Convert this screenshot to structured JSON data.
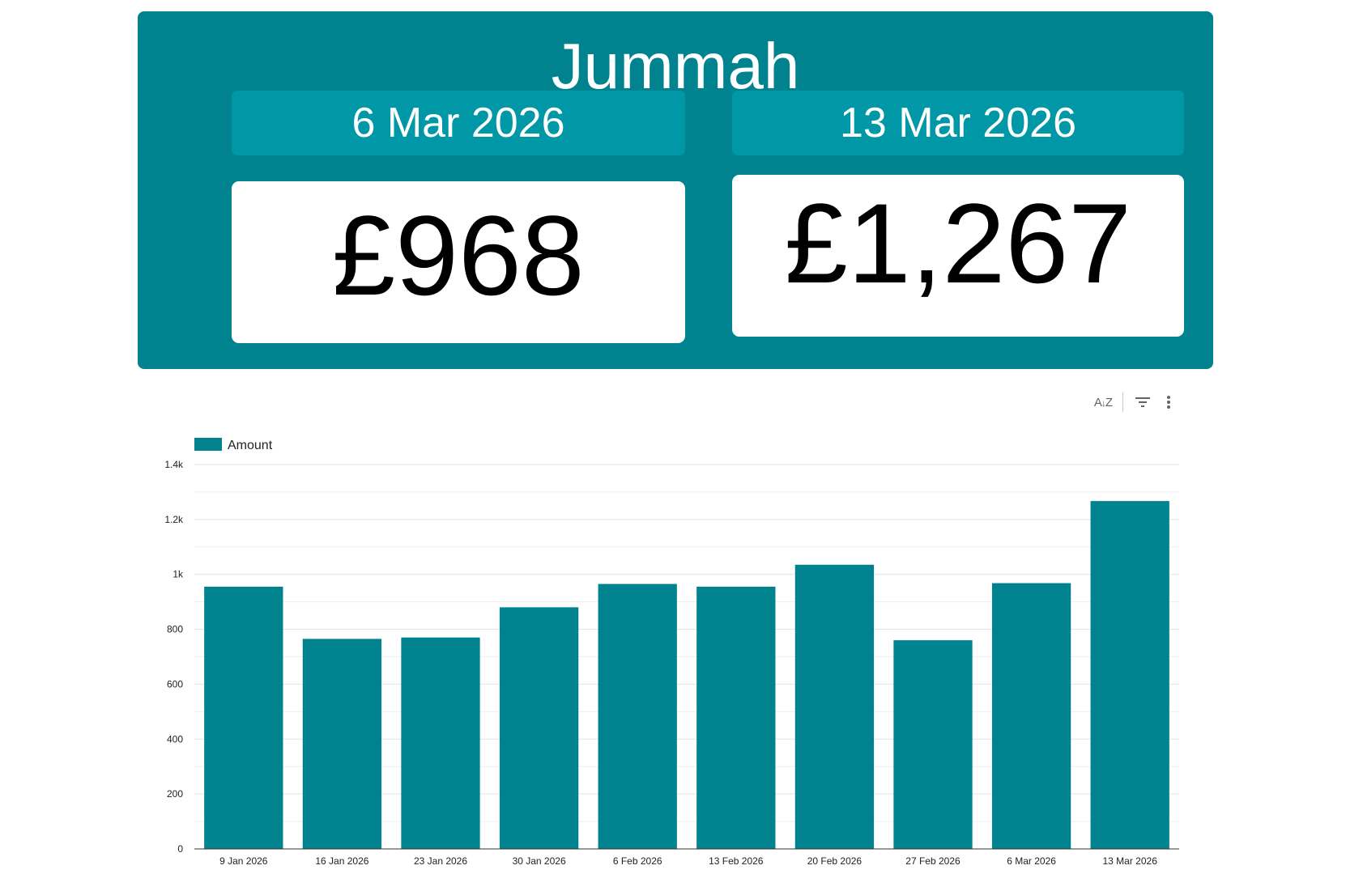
{
  "header": {
    "title": "Jummah",
    "cards": [
      {
        "date": "6 Mar 2026",
        "value": "£968"
      },
      {
        "date": "13 Mar 2026",
        "value": "£1,267"
      }
    ]
  },
  "toolbar": {
    "sort_icon": "sort-az-icon",
    "filter_icon": "filter-icon",
    "more_icon": "more-vert-icon"
  },
  "chart_data": {
    "type": "bar",
    "categories": [
      "9 Jan 2026",
      "16 Jan 2026",
      "23 Jan 2026",
      "30 Jan 2026",
      "6 Feb 2026",
      "13 Feb 2026",
      "20 Feb 2026",
      "27 Feb 2026",
      "6 Mar 2026",
      "13 Mar 2026"
    ],
    "series": [
      {
        "name": "Amount",
        "values": [
          955,
          765,
          770,
          880,
          965,
          955,
          1035,
          760,
          968,
          1267
        ],
        "color": "#00838f"
      }
    ],
    "y_ticks": [
      "0",
      "200",
      "400",
      "600",
      "800",
      "1k",
      "1.2k",
      "1.4k"
    ],
    "ylim": [
      0,
      1400
    ],
    "grid": true,
    "legend": "top-left"
  }
}
